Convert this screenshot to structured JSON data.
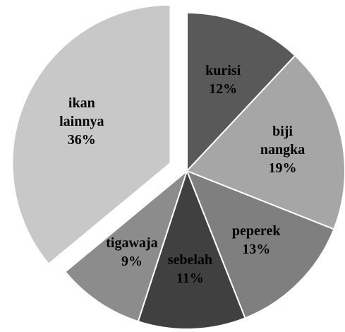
{
  "chart_data": {
    "type": "pie",
    "categories": [
      "kurisi",
      "biji nangka",
      "peperek",
      "sebelah",
      "tigawaja",
      "ikan lainnya"
    ],
    "values": [
      12,
      19,
      13,
      11,
      9,
      36
    ],
    "value_labels": [
      "12%",
      "19%",
      "13%",
      "11%",
      "9%",
      "36%"
    ],
    "colors": [
      "#595959",
      "#a6a6a6",
      "#7f7f7f",
      "#404040",
      "#8c8c8c",
      "#c8c8c8"
    ],
    "exploded": [
      5
    ]
  }
}
